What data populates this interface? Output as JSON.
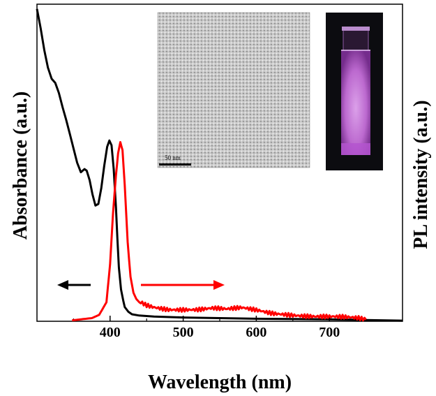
{
  "chart_data": {
    "type": "line",
    "xlabel": "Wavelength (nm)",
    "ylabel_left": "Absorbance (a.u.)",
    "ylabel_right": "PL intensity (a.u.)",
    "xlim": [
      300,
      800
    ],
    "ylim": [
      0,
      1
    ],
    "x_ticks": [
      400,
      500,
      600,
      700
    ],
    "x_minor_ticks": [
      350,
      450,
      550,
      650,
      750
    ],
    "y_ticks_shown": false,
    "grid": false,
    "series": [
      {
        "name": "Absorbance",
        "color": "#000000",
        "axis": "left",
        "x": [
          300,
          305,
          310,
          315,
          320,
          325,
          330,
          335,
          340,
          345,
          350,
          355,
          360,
          365,
          368,
          372,
          376,
          380,
          384,
          388,
          392,
          396,
          399,
          402,
          405,
          408,
          410,
          412,
          415,
          418,
          420,
          425,
          430,
          440,
          460,
          500,
          550,
          600,
          650,
          700,
          750,
          800
        ],
        "y": [
          0.985,
          0.925,
          0.855,
          0.8,
          0.765,
          0.752,
          0.72,
          0.675,
          0.635,
          0.59,
          0.545,
          0.5,
          0.47,
          0.48,
          0.475,
          0.445,
          0.4,
          0.365,
          0.37,
          0.42,
          0.49,
          0.55,
          0.57,
          0.555,
          0.48,
          0.36,
          0.26,
          0.17,
          0.1,
          0.065,
          0.045,
          0.03,
          0.022,
          0.018,
          0.015,
          0.012,
          0.01,
          0.008,
          0.007,
          0.006,
          0.004,
          0.002
        ]
      },
      {
        "name": "PL",
        "color": "#ff0000",
        "axis": "right",
        "x": [
          348,
          360,
          375,
          385,
          395,
          400,
          404,
          408,
          411,
          414,
          417,
          420,
          424,
          428,
          432,
          436,
          440,
          450,
          460,
          480,
          500,
          520,
          540,
          560,
          580,
          600,
          620,
          640,
          660,
          680,
          700,
          720,
          740,
          750
        ],
        "y": [
          0.003,
          0.006,
          0.01,
          0.02,
          0.06,
          0.18,
          0.34,
          0.46,
          0.53,
          0.565,
          0.54,
          0.43,
          0.25,
          0.14,
          0.09,
          0.07,
          0.06,
          0.05,
          0.045,
          0.04,
          0.04,
          0.038,
          0.04,
          0.035,
          0.04,
          0.035,
          0.028,
          0.025,
          0.02,
          0.015,
          0.012,
          0.01,
          0.008,
          0.005
        ]
      }
    ],
    "annotations": [
      {
        "type": "arrow",
        "direction": "left",
        "color": "#000000",
        "points_to": "left axis"
      },
      {
        "type": "arrow",
        "direction": "right",
        "color": "#ff0000",
        "points_to": "right axis"
      }
    ],
    "insets": [
      {
        "type": "TEM micrograph",
        "scale_bar": "50 nm"
      },
      {
        "type": "photo of glowing cuvette",
        "glow_color": "#d27ae8"
      }
    ]
  }
}
